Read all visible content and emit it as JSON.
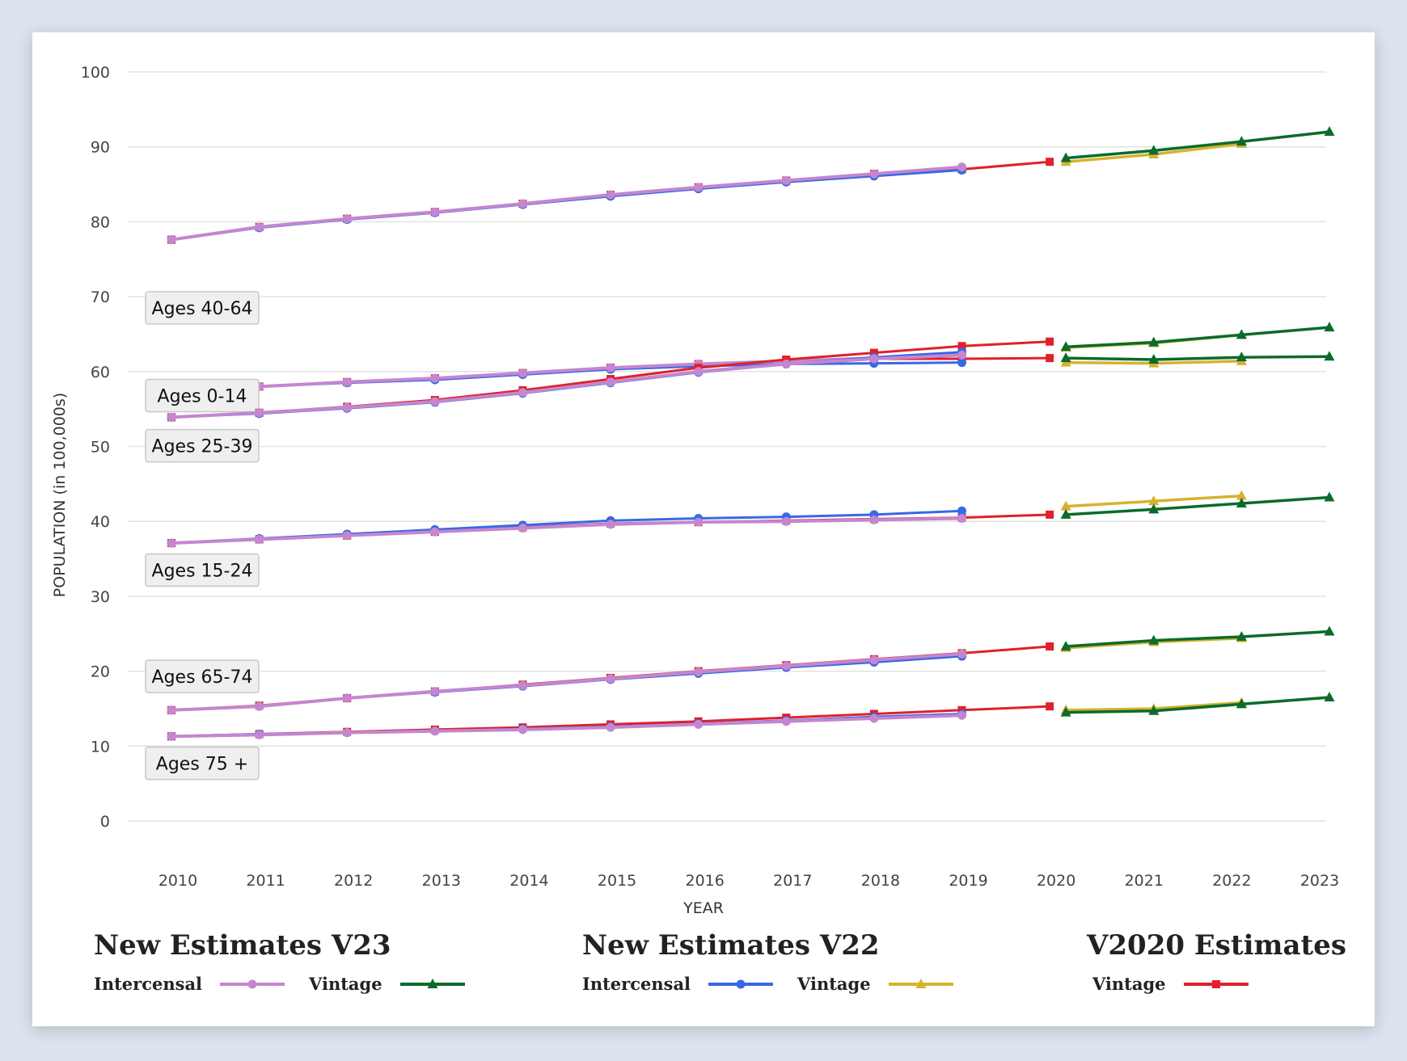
{
  "chart_data": {
    "type": "line",
    "xlabel": "YEAR",
    "ylabel": "POPULATION (in 100,000s)",
    "ylim": [
      0,
      100
    ],
    "yticks": [
      0,
      10,
      20,
      30,
      40,
      50,
      60,
      70,
      80,
      90,
      100
    ],
    "x": [
      2010,
      2011,
      2012,
      2013,
      2014,
      2015,
      2016,
      2017,
      2018,
      2019,
      2020,
      2021,
      2022,
      2023
    ],
    "grid": true,
    "colors": {
      "v23_intercensal": "#c486cf",
      "v23_vintage": "#0b6b2b",
      "v22_intercensal": "#3868e6",
      "v22_vintage": "#d6b22e",
      "v2020_vintage": "#e0202a"
    },
    "groups": [
      {
        "label": "Ages 40-64",
        "v23_intercensal": [
          [
            2010,
            77.6
          ],
          [
            2011,
            79.3
          ],
          [
            2012,
            80.4
          ],
          [
            2013,
            81.3
          ],
          [
            2014,
            82.4
          ],
          [
            2015,
            83.6
          ],
          [
            2016,
            84.6
          ],
          [
            2017,
            85.5
          ],
          [
            2018,
            86.4
          ],
          [
            2019,
            87.3
          ]
        ],
        "v22_intercensal": [
          [
            2010,
            77.6
          ],
          [
            2011,
            79.2
          ],
          [
            2012,
            80.3
          ],
          [
            2013,
            81.2
          ],
          [
            2014,
            82.3
          ],
          [
            2015,
            83.4
          ],
          [
            2016,
            84.4
          ],
          [
            2017,
            85.3
          ],
          [
            2018,
            86.1
          ],
          [
            2019,
            86.9
          ]
        ],
        "v2020_vintage": [
          [
            2010,
            77.6
          ],
          [
            2011,
            79.3
          ],
          [
            2012,
            80.4
          ],
          [
            2013,
            81.3
          ],
          [
            2014,
            82.4
          ],
          [
            2015,
            83.6
          ],
          [
            2016,
            84.6
          ],
          [
            2017,
            85.5
          ],
          [
            2018,
            86.4
          ],
          [
            2019,
            87.0
          ],
          [
            2020,
            88.0
          ]
        ],
        "v22_vintage": [
          [
            2020,
            88.0
          ],
          [
            2021,
            89.0
          ],
          [
            2022,
            90.4
          ]
        ],
        "v23_vintage": [
          [
            2020,
            88.5
          ],
          [
            2021,
            89.5
          ],
          [
            2022,
            90.7
          ],
          [
            2023,
            92.0
          ]
        ]
      },
      {
        "label": "Ages 0-14",
        "v23_intercensal": [
          [
            2010,
            57.5
          ],
          [
            2011,
            58.0
          ],
          [
            2012,
            58.6
          ],
          [
            2013,
            59.1
          ],
          [
            2014,
            59.8
          ],
          [
            2015,
            60.5
          ],
          [
            2016,
            61.0
          ],
          [
            2017,
            61.4
          ],
          [
            2018,
            61.8
          ],
          [
            2019,
            62.5
          ]
        ],
        "v22_intercensal": [
          [
            2010,
            57.4
          ],
          [
            2011,
            58.0
          ],
          [
            2012,
            58.5
          ],
          [
            2013,
            58.9
          ],
          [
            2014,
            59.6
          ],
          [
            2015,
            60.3
          ],
          [
            2016,
            60.7
          ],
          [
            2017,
            61.0
          ],
          [
            2018,
            61.1
          ],
          [
            2019,
            61.2
          ]
        ],
        "v2020_vintage": [
          [
            2010,
            57.5
          ],
          [
            2011,
            58.0
          ],
          [
            2012,
            58.6
          ],
          [
            2013,
            59.1
          ],
          [
            2014,
            59.8
          ],
          [
            2015,
            60.5
          ],
          [
            2016,
            61.0
          ],
          [
            2017,
            61.4
          ],
          [
            2018,
            61.7
          ],
          [
            2019,
            61.7
          ],
          [
            2020,
            61.8
          ]
        ],
        "v22_vintage": [
          [
            2020,
            61.2
          ],
          [
            2021,
            61.1
          ],
          [
            2022,
            61.4
          ]
        ],
        "v23_vintage": [
          [
            2020,
            61.8
          ],
          [
            2021,
            61.6
          ],
          [
            2022,
            61.9
          ],
          [
            2023,
            62.0
          ]
        ]
      },
      {
        "label": "Ages 25-39",
        "v23_intercensal": [
          [
            2010,
            53.9
          ],
          [
            2011,
            54.5
          ],
          [
            2012,
            55.2
          ],
          [
            2013,
            56.0
          ],
          [
            2014,
            57.2
          ],
          [
            2015,
            58.6
          ],
          [
            2016,
            60.0
          ],
          [
            2017,
            61.0
          ],
          [
            2018,
            61.7
          ],
          [
            2019,
            62.2
          ]
        ],
        "v22_intercensal": [
          [
            2010,
            53.9
          ],
          [
            2011,
            54.4
          ],
          [
            2012,
            55.1
          ],
          [
            2013,
            55.9
          ],
          [
            2014,
            57.1
          ],
          [
            2015,
            58.5
          ],
          [
            2016,
            59.9
          ],
          [
            2017,
            61.0
          ],
          [
            2018,
            61.9
          ],
          [
            2019,
            62.6
          ]
        ],
        "v2020_vintage": [
          [
            2010,
            53.9
          ],
          [
            2011,
            54.5
          ],
          [
            2012,
            55.3
          ],
          [
            2013,
            56.2
          ],
          [
            2014,
            57.5
          ],
          [
            2015,
            59.0
          ],
          [
            2016,
            60.5
          ],
          [
            2017,
            61.6
          ],
          [
            2018,
            62.5
          ],
          [
            2019,
            63.4
          ],
          [
            2020,
            64.0
          ]
        ],
        "v22_vintage": [
          [
            2020,
            63.2
          ],
          [
            2021,
            63.8
          ],
          [
            2022,
            64.9
          ]
        ],
        "v23_vintage": [
          [
            2020,
            63.3
          ],
          [
            2021,
            63.9
          ],
          [
            2022,
            64.9
          ],
          [
            2023,
            65.9
          ]
        ]
      },
      {
        "label": "Ages 15-24",
        "v23_intercensal": [
          [
            2010,
            37.1
          ],
          [
            2011,
            37.6
          ],
          [
            2012,
            38.1
          ],
          [
            2013,
            38.6
          ],
          [
            2014,
            39.1
          ],
          [
            2015,
            39.6
          ],
          [
            2016,
            39.9
          ],
          [
            2017,
            40.0
          ],
          [
            2018,
            40.2
          ],
          [
            2019,
            40.4
          ]
        ],
        "v22_intercensal": [
          [
            2010,
            37.1
          ],
          [
            2011,
            37.7
          ],
          [
            2012,
            38.3
          ],
          [
            2013,
            38.9
          ],
          [
            2014,
            39.5
          ],
          [
            2015,
            40.1
          ],
          [
            2016,
            40.4
          ],
          [
            2017,
            40.6
          ],
          [
            2018,
            40.9
          ],
          [
            2019,
            41.4
          ]
        ],
        "v2020_vintage": [
          [
            2010,
            37.1
          ],
          [
            2011,
            37.6
          ],
          [
            2012,
            38.1
          ],
          [
            2013,
            38.6
          ],
          [
            2014,
            39.2
          ],
          [
            2015,
            39.7
          ],
          [
            2016,
            39.9
          ],
          [
            2017,
            40.1
          ],
          [
            2018,
            40.3
          ],
          [
            2019,
            40.5
          ],
          [
            2020,
            40.9
          ]
        ],
        "v22_vintage": [
          [
            2020,
            42.0
          ],
          [
            2021,
            42.7
          ],
          [
            2022,
            43.4
          ]
        ],
        "v23_vintage": [
          [
            2020,
            40.9
          ],
          [
            2021,
            41.6
          ],
          [
            2022,
            42.4
          ],
          [
            2023,
            43.2
          ]
        ]
      },
      {
        "label": "Ages 65-74",
        "v23_intercensal": [
          [
            2010,
            14.8
          ],
          [
            2011,
            15.3
          ],
          [
            2012,
            16.4
          ],
          [
            2013,
            17.3
          ],
          [
            2014,
            18.1
          ],
          [
            2015,
            19.0
          ],
          [
            2016,
            19.9
          ],
          [
            2017,
            20.7
          ],
          [
            2018,
            21.5
          ],
          [
            2019,
            22.3
          ]
        ],
        "v22_intercensal": [
          [
            2010,
            14.8
          ],
          [
            2011,
            15.3
          ],
          [
            2012,
            16.4
          ],
          [
            2013,
            17.2
          ],
          [
            2014,
            18.0
          ],
          [
            2015,
            18.9
          ],
          [
            2016,
            19.7
          ],
          [
            2017,
            20.5
          ],
          [
            2018,
            21.2
          ],
          [
            2019,
            22.0
          ]
        ],
        "v2020_vintage": [
          [
            2010,
            14.8
          ],
          [
            2011,
            15.4
          ],
          [
            2012,
            16.4
          ],
          [
            2013,
            17.3
          ],
          [
            2014,
            18.2
          ],
          [
            2015,
            19.1
          ],
          [
            2016,
            20.0
          ],
          [
            2017,
            20.8
          ],
          [
            2018,
            21.6
          ],
          [
            2019,
            22.4
          ],
          [
            2020,
            23.3
          ]
        ],
        "v22_vintage": [
          [
            2020,
            23.1
          ],
          [
            2021,
            23.9
          ],
          [
            2022,
            24.4
          ]
        ],
        "v23_vintage": [
          [
            2020,
            23.3
          ],
          [
            2021,
            24.1
          ],
          [
            2022,
            24.6
          ],
          [
            2023,
            25.3
          ]
        ]
      },
      {
        "label": "Ages 75 +",
        "v23_intercensal": [
          [
            2010,
            11.3
          ],
          [
            2011,
            11.5
          ],
          [
            2012,
            11.8
          ],
          [
            2013,
            12.0
          ],
          [
            2014,
            12.2
          ],
          [
            2015,
            12.5
          ],
          [
            2016,
            12.9
          ],
          [
            2017,
            13.3
          ],
          [
            2018,
            13.7
          ],
          [
            2019,
            14.1
          ]
        ],
        "v22_intercensal": [
          [
            2010,
            11.3
          ],
          [
            2011,
            11.6
          ],
          [
            2012,
            11.8
          ],
          [
            2013,
            12.0
          ],
          [
            2014,
            12.3
          ],
          [
            2015,
            12.6
          ],
          [
            2016,
            13.0
          ],
          [
            2017,
            13.4
          ],
          [
            2018,
            13.9
          ],
          [
            2019,
            14.3
          ]
        ],
        "v2020_vintage": [
          [
            2010,
            11.3
          ],
          [
            2011,
            11.6
          ],
          [
            2012,
            11.9
          ],
          [
            2013,
            12.2
          ],
          [
            2014,
            12.5
          ],
          [
            2015,
            12.9
          ],
          [
            2016,
            13.3
          ],
          [
            2017,
            13.8
          ],
          [
            2018,
            14.3
          ],
          [
            2019,
            14.8
          ],
          [
            2020,
            15.3
          ]
        ],
        "v22_vintage": [
          [
            2020,
            14.8
          ],
          [
            2021,
            15.0
          ],
          [
            2022,
            15.8
          ]
        ],
        "v23_vintage": [
          [
            2020,
            14.5
          ],
          [
            2021,
            14.7
          ],
          [
            2022,
            15.6
          ],
          [
            2023,
            16.5
          ]
        ]
      }
    ],
    "group_label_y": [
      68.5,
      56.8,
      50.1,
      33.5,
      19.3,
      7.7
    ],
    "legend_placement": "bottom"
  },
  "legend": {
    "groups": [
      {
        "title": "New Estimates V23",
        "items": [
          {
            "label": "Intercensal",
            "series": "v23_intercensal",
            "marker": "circle"
          },
          {
            "label": "Vintage",
            "series": "v23_vintage",
            "marker": "triangle"
          }
        ]
      },
      {
        "title": "New Estimates V22",
        "items": [
          {
            "label": "Intercensal",
            "series": "v22_intercensal",
            "marker": "circle"
          },
          {
            "label": "Vintage",
            "series": "v22_vintage",
            "marker": "triangle"
          }
        ]
      },
      {
        "title": "V2020 Estimates",
        "items": [
          {
            "label": "Vintage",
            "series": "v2020_vintage",
            "marker": "square"
          }
        ]
      }
    ]
  }
}
